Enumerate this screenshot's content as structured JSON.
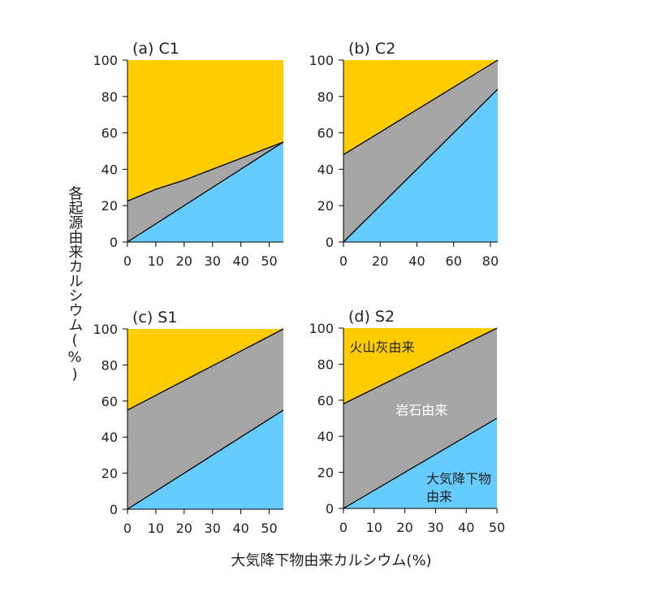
{
  "chart_data": {
    "type": "area",
    "xlabel": "大気降下物由来カルシウム(%)",
    "ylabel": "各起源由来カルシウム(%)",
    "colors": {
      "volcanic": "#FFCC00",
      "rock": "#A6A6A6",
      "atmospheric": "#66CCFF",
      "line": "#000000"
    },
    "series_labels": {
      "volcanic": "火山灰由来",
      "rock": "岩石由来",
      "atmospheric_line1": "大気降下物",
      "atmospheric_line2": "由来"
    },
    "panels": [
      {
        "title": "(a) C1",
        "xlim": [
          0,
          55
        ],
        "ylim": [
          0,
          100
        ],
        "xticks": [
          0,
          10,
          20,
          30,
          40,
          50
        ],
        "yticks": [
          0,
          20,
          40,
          60,
          80,
          100
        ],
        "atmospheric_top": [
          [
            0,
            0
          ],
          [
            55,
            55
          ]
        ],
        "rock_top": [
          [
            0,
            22.5
          ],
          [
            10,
            29
          ],
          [
            20,
            34
          ],
          [
            30,
            40
          ],
          [
            40,
            46
          ],
          [
            55,
            55
          ]
        ]
      },
      {
        "title": "(b) C2",
        "xlim": [
          0,
          84
        ],
        "ylim": [
          0,
          100
        ],
        "xticks": [
          0,
          20,
          40,
          60,
          80
        ],
        "yticks": [
          0,
          20,
          40,
          60,
          80,
          100
        ],
        "atmospheric_top": [
          [
            0,
            0
          ],
          [
            84,
            84
          ]
        ],
        "rock_top": [
          [
            0,
            48
          ],
          [
            84,
            100
          ]
        ]
      },
      {
        "title": "(c) S1",
        "xlim": [
          0,
          55
        ],
        "ylim": [
          0,
          100
        ],
        "xticks": [
          0,
          10,
          20,
          30,
          40,
          50
        ],
        "yticks": [
          0,
          20,
          40,
          60,
          80,
          100
        ],
        "atmospheric_top": [
          [
            0,
            0
          ],
          [
            55,
            55
          ]
        ],
        "rock_top": [
          [
            0,
            55
          ],
          [
            55,
            100
          ]
        ]
      },
      {
        "title": "(d) S2",
        "xlim": [
          0,
          50
        ],
        "ylim": [
          0,
          100
        ],
        "xticks": [
          0,
          10,
          20,
          30,
          40,
          50
        ],
        "yticks": [
          0,
          20,
          40,
          60,
          80,
          100
        ],
        "atmospheric_top": [
          [
            0,
            0
          ],
          [
            50,
            50
          ]
        ],
        "rock_top": [
          [
            0,
            58
          ],
          [
            50,
            100
          ]
        ],
        "show_labels": true
      }
    ]
  }
}
